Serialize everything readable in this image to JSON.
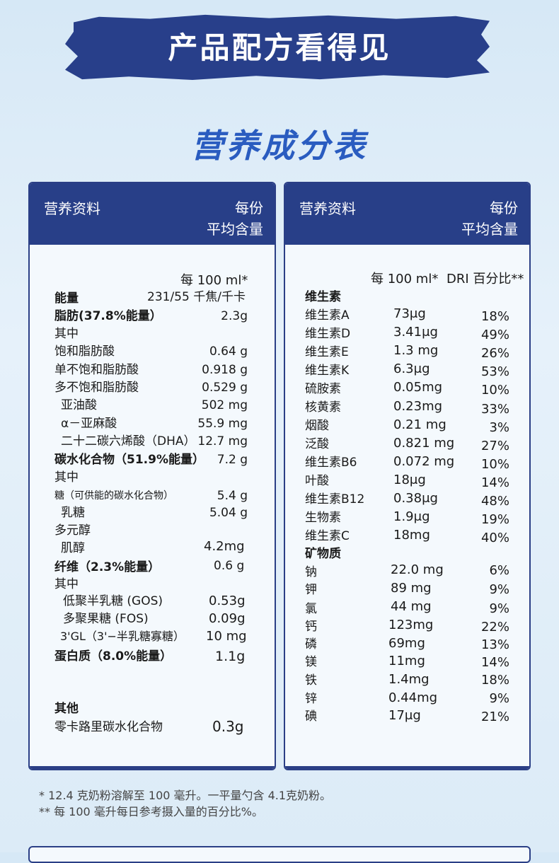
{
  "banner": {
    "title": "产品配方看得见"
  },
  "section_title": "营养成分表",
  "left": {
    "head_left": "营养资料",
    "head_right_1": "每份",
    "head_right_2": "平均含量",
    "per100": "每 100 ml*",
    "rows": [
      {
        "name": "能量",
        "value": "231/55 千焦/千卡",
        "bold": true
      },
      {
        "name": "脂肪(37.8%能量）",
        "value": "2.3g",
        "bold": true
      },
      {
        "name": "其中",
        "value": ""
      },
      {
        "name": "饱和脂肪酸",
        "value": "0.64 g"
      },
      {
        "name": "单不饱和脂肪酸",
        "value": "0.918 g"
      },
      {
        "name": "多不饱和脂肪酸",
        "value": "0.529 g"
      },
      {
        "name": "亚油酸",
        "value": "502 mg"
      },
      {
        "name": "α－亚麻酸",
        "value": "55.9 mg"
      },
      {
        "name": "二十二碳六烯酸（DHA）",
        "value": "12.7 mg"
      },
      {
        "name": "碳水化合物（51.9%能量）",
        "value": "7.2 g",
        "bold": true
      },
      {
        "name": "其中",
        "value": ""
      },
      {
        "name": "糖（可供能的碳水化合物）",
        "value": "5.4 g"
      },
      {
        "name": "乳糖",
        "value": "5.04 g"
      },
      {
        "name": "多元醇",
        "value": ""
      },
      {
        "name": "肌醇",
        "value": "4.2mg"
      },
      {
        "name": "纤维（2.3%能量）",
        "value": "0.6 g",
        "bold": true
      },
      {
        "name": "其中",
        "value": ""
      },
      {
        "name": "低聚半乳糖 (GOS)",
        "value": "0.53g"
      },
      {
        "name": "多聚果糖 (FOS)",
        "value": "0.09g"
      },
      {
        "name": "3'GL（3'−半乳糖寡糖）",
        "value": "10 mg"
      },
      {
        "name": "蛋白质（8.0%能量）",
        "value": "1.1g",
        "bold": true
      },
      {
        "name": "其他",
        "value": "",
        "bold": true
      },
      {
        "name": "零卡路里碳水化合物",
        "value": "0.3g"
      }
    ]
  },
  "right": {
    "head_left": "营养资料",
    "head_right_1": "每份",
    "head_right_2": "平均含量",
    "per100": "每 100 ml*",
    "dri": "DRI 百分比**",
    "vitamin_title": "维生素",
    "vitamins": [
      {
        "name": "维生素A",
        "value": "73μg",
        "pct": "18%"
      },
      {
        "name": "维生素D",
        "value": "3.41μg",
        "pct": "49%"
      },
      {
        "name": "维生素E",
        "value": "1.3 mg",
        "pct": "26%"
      },
      {
        "name": "维生素K",
        "value": "6.3μg",
        "pct": "53%"
      },
      {
        "name": "硫胺素",
        "value": "0.05mg",
        "pct": "10%"
      },
      {
        "name": "核黄素",
        "value": "0.23mg",
        "pct": "33%"
      },
      {
        "name": "烟酸",
        "value": "0.21 mg",
        "pct": "3%"
      },
      {
        "name": "泛酸",
        "value": "0.821 mg",
        "pct": "27%"
      },
      {
        "name": "维生素B6",
        "value": "0.072 mg",
        "pct": "10%"
      },
      {
        "name": "叶酸",
        "value": "18μg",
        "pct": "14%"
      },
      {
        "name": "维生素B12",
        "value": "0.38μg",
        "pct": "48%"
      },
      {
        "name": "生物素",
        "value": "1.9μg",
        "pct": "19%"
      },
      {
        "name": "维生素C",
        "value": "18mg",
        "pct": "40%"
      }
    ],
    "mineral_title": "矿物质",
    "minerals": [
      {
        "name": "钠",
        "value": "22.0 mg",
        "pct": "6%"
      },
      {
        "name": "钾",
        "value": "89 mg",
        "pct": "9%"
      },
      {
        "name": "氯",
        "value": "44 mg",
        "pct": "9%"
      },
      {
        "name": "钙",
        "value": "123mg",
        "pct": "22%"
      },
      {
        "name": "磷",
        "value": "69mg",
        "pct": "13%"
      },
      {
        "name": "镁",
        "value": "11mg",
        "pct": "14%"
      },
      {
        "name": "铁",
        "value": "1.4mg",
        "pct": "18%"
      },
      {
        "name": "锌",
        "value": "0.44mg",
        "pct": "9%"
      },
      {
        "name": "碘",
        "value": "17μg",
        "pct": "21%"
      }
    ]
  },
  "footnotes": [
    "* 12.4 克奶粉溶解至 100 毫升。一平量勺含 4.1克奶粉。",
    "** 每 100 毫升每日参考摄入量的百分比%。"
  ]
}
